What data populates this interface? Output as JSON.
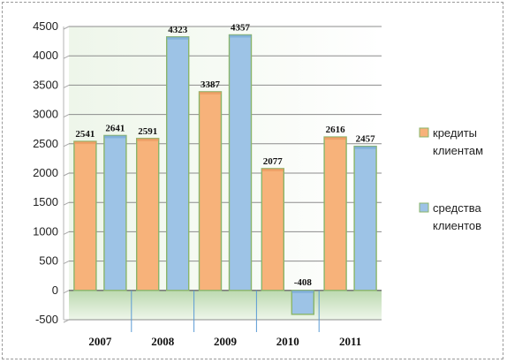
{
  "chart_data": {
    "type": "bar",
    "categories": [
      "2007",
      "2008",
      "2009",
      "2010",
      "2011"
    ],
    "series": [
      {
        "name": "кредиты клиентам",
        "color": "#f7b27a",
        "values": [
          2541,
          2591,
          3387,
          2077,
          2616
        ]
      },
      {
        "name": "средства клиентов",
        "color": "#9dc3e6",
        "values": [
          2641,
          4323,
          4357,
          -408,
          2457
        ]
      }
    ],
    "ylim": [
      -500,
      4500
    ],
    "yticks": [
      -500,
      0,
      500,
      1000,
      1500,
      2000,
      2500,
      3000,
      3500,
      4000,
      4500
    ],
    "grid": true,
    "legend_position": "right",
    "title": "",
    "xlabel": "",
    "ylabel": ""
  }
}
